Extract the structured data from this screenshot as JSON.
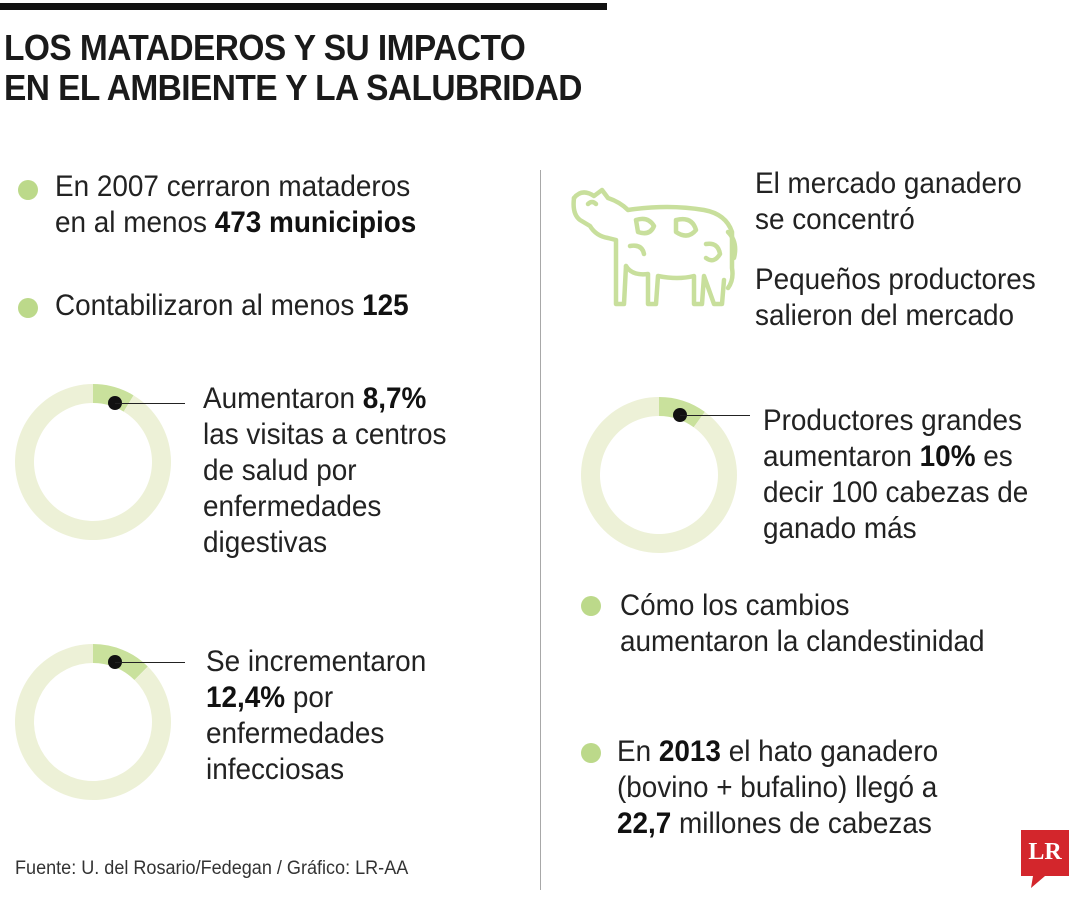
{
  "title": {
    "line1": "LOS MATADEROS Y SU IMPACTO",
    "line2": "EN EL AMBIENTE Y LA SALUBRIDAD"
  },
  "colors": {
    "accent": "#bcd98a",
    "donut_bg": "#edf1d7",
    "donut_slice": "#c9e19c",
    "cow_stroke": "#c8df9c",
    "logo_red": "#d3262c",
    "rule": "#111111"
  },
  "left": {
    "fact1": {
      "pre": "En ",
      "year": "2007",
      "mid": " cerraron mataderos",
      "line2_pre": "en al menos ",
      "count": "473 municipios"
    },
    "fact2": {
      "pre": "Contabilizaron al menos ",
      "count": "125"
    },
    "stat1": {
      "pre": "Aumentaron ",
      "value": "8,7%",
      "line2": "las visitas a centros",
      "line3": "de salud por",
      "line4": "enfermedades",
      "line5": "digestivas"
    },
    "stat2": {
      "line1": "Se incrementaron",
      "value": "12,4%",
      "post": " por",
      "line3": "enfermedades",
      "line4": "infecciosas"
    }
  },
  "right": {
    "cow_icon": "cow-icon",
    "market1": {
      "line1": "El mercado ganadero",
      "line2": "se concentró"
    },
    "market2": {
      "line1": "Pequeños productores",
      "line2": "salieron del mercado"
    },
    "stat3": {
      "line1": "Productores grandes",
      "pre": "aumentaron ",
      "value": "10%",
      "post": " es",
      "line3": "decir 100 cabezas de",
      "line4": "ganado más"
    },
    "fact3": {
      "line1": "Cómo los cambios",
      "line2": "aumentaron la clandestinidad"
    },
    "fact4": {
      "pre": "En ",
      "year": "2013",
      "mid": " el hato ganadero",
      "line2": "(bovino + bufalino) llegó a",
      "value": "22,7",
      "post": " millones de cabezas"
    }
  },
  "source": "Fuente:  U. del Rosario/Fedegan / Gráfico: LR-AA",
  "logo": "LR",
  "chart_data": [
    {
      "type": "pie",
      "values": [
        8.7,
        91.3
      ],
      "unit": "%"
    },
    {
      "type": "pie",
      "values": [
        12.4,
        87.6
      ],
      "unit": "%"
    },
    {
      "type": "pie",
      "values": [
        10,
        90
      ],
      "unit": "%"
    }
  ]
}
